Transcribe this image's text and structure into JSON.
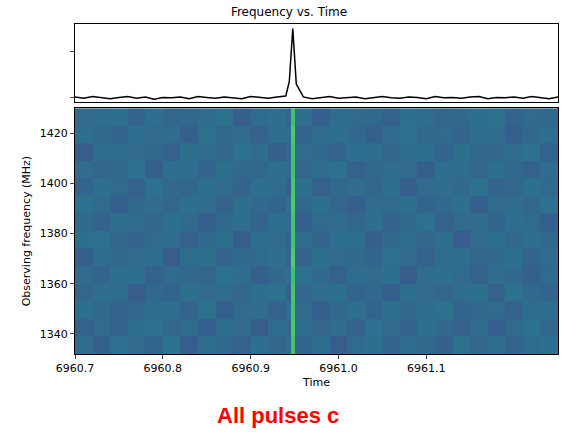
{
  "chart_data": [
    {
      "type": "line",
      "title": "Frequency vs. Time",
      "color": "#000000",
      "x": [
        6960.7,
        6960.71,
        6960.72,
        6960.73,
        6960.74,
        6960.75,
        6960.76,
        6960.77,
        6960.78,
        6960.79,
        6960.8,
        6960.81,
        6960.82,
        6960.83,
        6960.84,
        6960.85,
        6960.86,
        6960.87,
        6960.88,
        6960.89,
        6960.9,
        6960.91,
        6960.92,
        6960.93,
        6960.94,
        6960.944,
        6960.948,
        6960.952,
        6960.96,
        6960.97,
        6960.98,
        6960.99,
        6961.0,
        6961.01,
        6961.02,
        6961.03,
        6961.04,
        6961.05,
        6961.06,
        6961.07,
        6961.08,
        6961.09,
        6961.1,
        6961.11,
        6961.12,
        6961.13,
        6961.14,
        6961.15,
        6961.16,
        6961.17,
        6961.18,
        6961.19,
        6961.2,
        6961.21,
        6961.22,
        6961.23,
        6961.24,
        6961.25
      ],
      "values": [
        0.02,
        -0.01,
        0.03,
        0.0,
        -0.02,
        0.01,
        0.03,
        -0.01,
        0.02,
        -0.03,
        0.01,
        0.0,
        0.02,
        -0.02,
        0.03,
        0.01,
        -0.01,
        0.02,
        0.0,
        -0.02,
        0.03,
        0.01,
        -0.01,
        0.02,
        0.04,
        0.35,
        1.5,
        0.3,
        0.02,
        -0.02,
        0.01,
        0.03,
        -0.01,
        0.0,
        0.02,
        -0.02,
        0.01,
        0.03,
        0.0,
        -0.01,
        0.02,
        0.01,
        -0.02,
        0.03,
        0.0,
        0.01,
        -0.01,
        0.02,
        0.03,
        -0.02,
        0.01,
        0.0,
        0.02,
        -0.01,
        0.03,
        0.01,
        -0.02,
        0.02
      ],
      "xlim": [
        6960.7,
        6961.25
      ],
      "ylim": [
        -0.08,
        1.6
      ],
      "yticks": [
        0,
        1
      ],
      "tick_labels": false
    },
    {
      "type": "heatmap",
      "xlabel": "Time",
      "ylabel": "Observing frequency (MHz)",
      "color": "Viridis",
      "grid": false,
      "x_edges": [
        6960.7,
        6960.72,
        6960.74,
        6960.76,
        6960.78,
        6960.8,
        6960.82,
        6960.84,
        6960.86,
        6960.88,
        6960.9,
        6960.92,
        6960.94,
        6960.946,
        6960.95,
        6960.97,
        6960.99,
        6961.01,
        6961.03,
        6961.05,
        6961.07,
        6961.09,
        6961.11,
        6961.13,
        6961.15,
        6961.17,
        6961.19,
        6961.21,
        6961.23,
        6961.25
      ],
      "y_edges": [
        1332,
        1339,
        1346,
        1353,
        1360,
        1367,
        1374,
        1381,
        1388,
        1395,
        1402,
        1409,
        1416,
        1423,
        1430
      ],
      "cells": [
        [
          0.2,
          -0.4,
          0.5,
          0.1,
          -0.2,
          0.6,
          -0.5,
          0.3,
          0.0,
          -0.3,
          0.4,
          -0.1,
          0.2,
          4.6,
          -0.2,
          0.3,
          -0.5,
          0.1,
          0.4,
          -0.3,
          0.2,
          0.0,
          -0.4,
          0.5,
          -0.1,
          0.3,
          -0.2,
          0.1,
          0.4
        ],
        [
          -0.3,
          0.1,
          -0.2,
          0.4,
          0.5,
          -0.1,
          0.2,
          -0.4,
          0.3,
          0.1,
          -0.5,
          0.2,
          0.0,
          4.8,
          0.3,
          -0.1,
          0.2,
          -0.3,
          0.5,
          0.1,
          -0.2,
          0.4,
          0.0,
          -0.3,
          0.2,
          -0.4,
          0.1,
          0.5,
          -0.1
        ],
        [
          0.4,
          0.0,
          -0.3,
          -0.1,
          0.2,
          0.3,
          -0.2,
          0.5,
          -0.4,
          0.1,
          0.2,
          -0.3,
          0.4,
          4.5,
          0.1,
          -0.4,
          0.0,
          0.3,
          -0.2,
          0.4,
          -0.1,
          0.2,
          0.5,
          -0.2,
          0.0,
          0.1,
          -0.3,
          0.2,
          0.3
        ],
        [
          -0.1,
          0.3,
          0.2,
          -0.5,
          0.0,
          -0.2,
          0.4,
          0.1,
          0.2,
          -0.1,
          0.3,
          0.5,
          -0.3,
          4.7,
          -0.1,
          0.2,
          0.4,
          -0.2,
          0.0,
          -0.4,
          0.3,
          0.1,
          -0.1,
          0.2,
          0.4,
          -0.3,
          0.5,
          0.0,
          -0.2
        ],
        [
          0.1,
          -0.2,
          0.4,
          0.3,
          -0.3,
          0.1,
          0.0,
          -0.1,
          0.5,
          0.2,
          -0.4,
          0.0,
          0.3,
          4.4,
          0.5,
          0.0,
          -0.3,
          0.2,
          0.1,
          0.3,
          -0.5,
          0.2,
          0.4,
          0.1,
          -0.3,
          0.2,
          0.0,
          -0.4,
          0.1
        ],
        [
          -0.4,
          0.2,
          0.0,
          0.1,
          0.3,
          -0.5,
          0.2,
          0.4,
          -0.2,
          0.0,
          0.1,
          0.3,
          -0.1,
          4.9,
          -0.3,
          0.4,
          0.1,
          0.0,
          -0.2,
          0.5,
          0.1,
          -0.3,
          0.2,
          0.3,
          -0.1,
          0.0,
          0.4,
          -0.2,
          0.2
        ],
        [
          0.3,
          0.5,
          -0.1,
          -0.2,
          0.1,
          0.2,
          -0.3,
          0.0,
          0.4,
          -0.5,
          0.2,
          0.1,
          -0.2,
          4.6,
          0.2,
          -0.2,
          0.3,
          0.4,
          -0.4,
          0.0,
          0.2,
          -0.1,
          0.3,
          -0.5,
          0.1,
          0.4,
          -0.1,
          0.3,
          0.0
        ],
        [
          0.0,
          -0.3,
          0.3,
          0.2,
          -0.1,
          0.4,
          0.1,
          -0.4,
          0.0,
          0.3,
          -0.2,
          0.4,
          0.1,
          4.5,
          -0.4,
          0.1,
          0.2,
          -0.1,
          0.3,
          -0.2,
          0.0,
          0.5,
          -0.3,
          0.1,
          0.2,
          -0.2,
          0.3,
          0.1,
          -0.4
        ],
        [
          0.5,
          0.1,
          -0.4,
          0.0,
          0.2,
          -0.1,
          0.3,
          0.2,
          -0.3,
          0.4,
          0.0,
          -0.2,
          0.5,
          4.8,
          0.0,
          0.3,
          -0.1,
          -0.4,
          0.2,
          0.1,
          0.4,
          -0.2,
          0.0,
          0.3,
          -0.4,
          0.1,
          0.2,
          -0.1,
          0.5
        ],
        [
          -0.2,
          0.4,
          0.1,
          -0.3,
          0.5,
          0.0,
          -0.1,
          0.3,
          0.1,
          -0.2,
          0.4,
          0.2,
          -0.4,
          4.7,
          0.4,
          -0.3,
          0.0,
          0.2,
          -0.1,
          0.3,
          -0.4,
          0.1,
          0.2,
          0.0,
          0.5,
          -0.2,
          -0.1,
          0.4,
          0.1
        ],
        [
          0.2,
          -0.1,
          0.0,
          0.5,
          -0.4,
          0.3,
          0.2,
          -0.2,
          0.4,
          0.0,
          -0.1,
          0.3,
          0.2,
          4.5,
          -0.1,
          0.2,
          0.5,
          -0.3,
          0.0,
          0.2,
          0.1,
          -0.4,
          0.3,
          0.2,
          -0.1,
          0.4,
          0.0,
          -0.3,
          0.2
        ],
        [
          -0.5,
          0.3,
          0.2,
          0.1,
          0.0,
          -0.3,
          0.4,
          0.1,
          -0.1,
          0.5,
          0.2,
          -0.4,
          0.0,
          4.6,
          0.2,
          0.0,
          -0.2,
          0.4,
          0.3,
          -0.1,
          0.2,
          0.3,
          -0.2,
          0.4,
          0.0,
          -0.1,
          0.2,
          0.5,
          -0.3
        ],
        [
          0.3,
          0.0,
          -0.2,
          0.4,
          0.1,
          0.2,
          -0.4,
          0.5,
          0.0,
          0.1,
          -0.3,
          0.2,
          0.4,
          4.8,
          -0.2,
          0.1,
          0.3,
          0.0,
          -0.4,
          0.2,
          0.5,
          0.0,
          0.1,
          -0.2,
          0.3,
          0.2,
          -0.4,
          0.0,
          0.3
        ],
        [
          0.1,
          0.2,
          0.4,
          -0.2,
          0.3,
          -0.1,
          0.0,
          0.2,
          0.5,
          -0.4,
          0.1,
          0.3,
          -0.1,
          4.4,
          0.3,
          -0.4,
          0.2,
          0.1,
          0.0,
          -0.3,
          0.4,
          0.2,
          -0.1,
          0.0,
          0.3,
          0.5,
          -0.2,
          0.1,
          0.0
        ]
      ],
      "zlim": [
        -4,
        8
      ],
      "xlim": [
        6960.7,
        6961.25
      ],
      "ylim": [
        1332,
        1430
      ],
      "xticks": [
        6960.7,
        6960.8,
        6960.9,
        {
          "value": 6961.0,
          "label": "6961.0"
        },
        6961.1
      ],
      "yticks": [
        1340,
        1360,
        1380,
        1400,
        1420
      ],
      "annotations": [
        {
          "text": "All pulses c",
          "color": "#ff0000"
        }
      ]
    }
  ]
}
